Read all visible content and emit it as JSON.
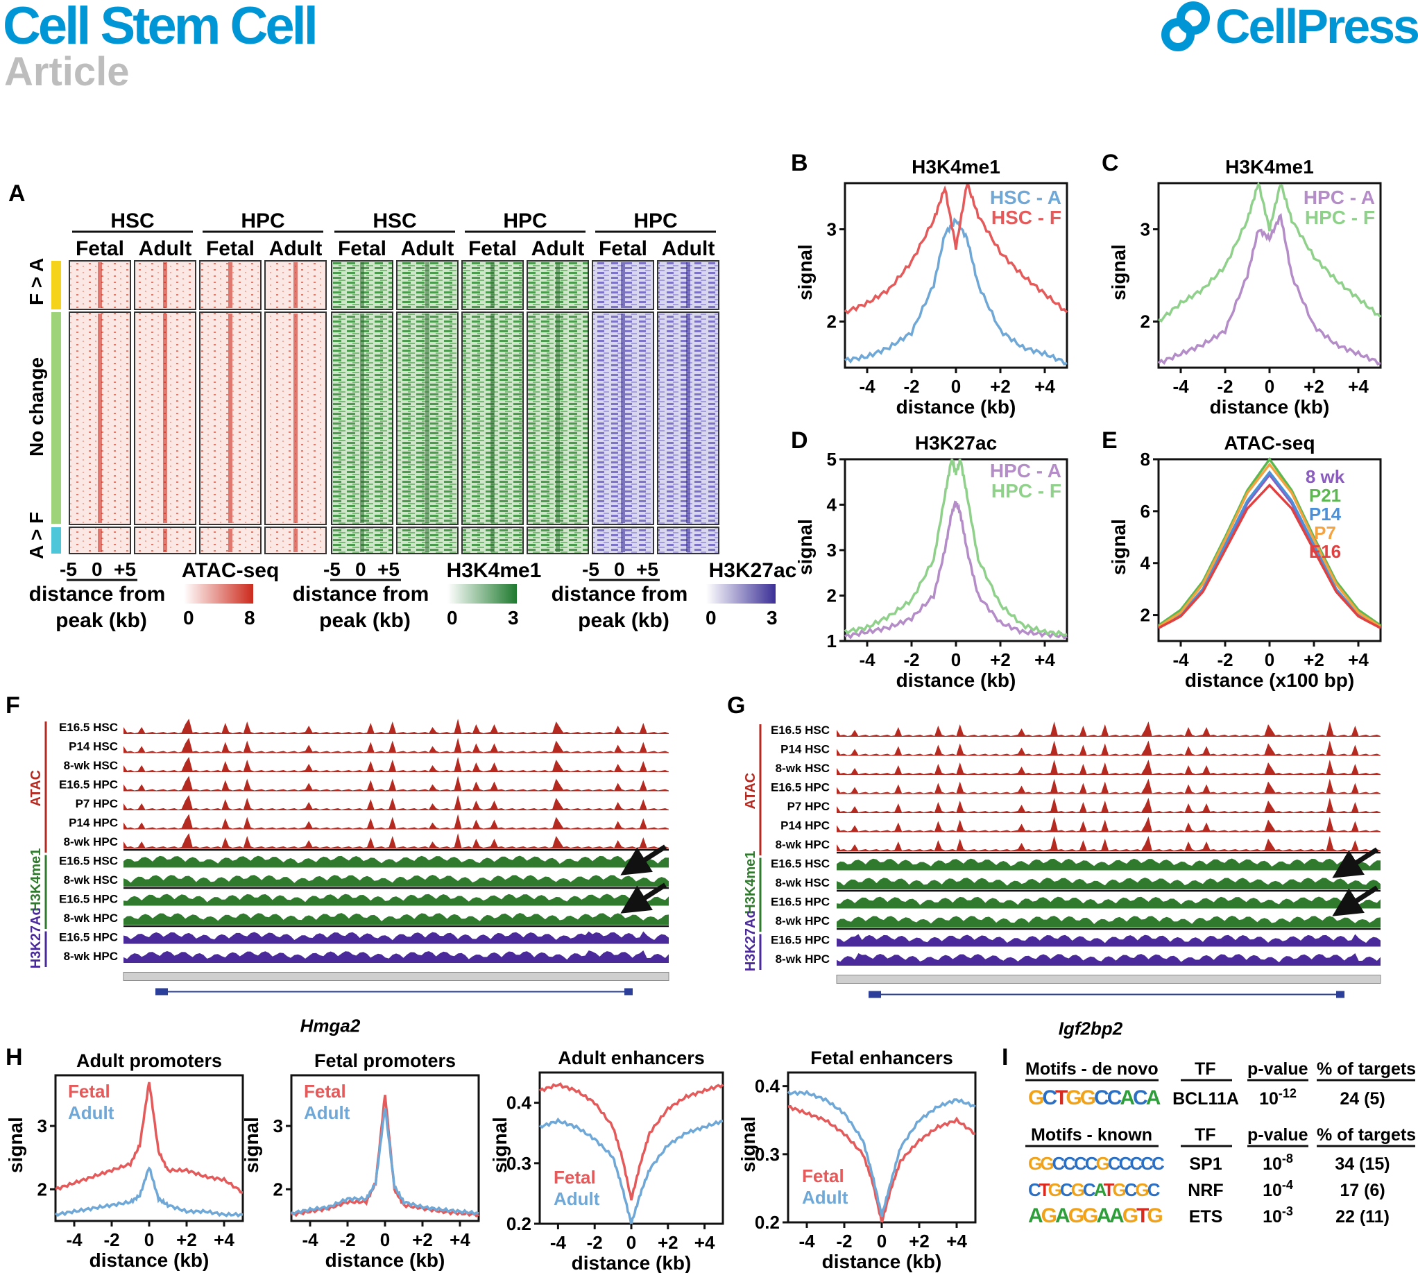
{
  "header": {
    "journal": "Cell Stem Cell",
    "section": "Article",
    "publisher": "CellPress"
  },
  "panelA": {
    "label": "A",
    "groups": [
      {
        "name": "HSC",
        "conditions": [
          "Fetal",
          "Adult"
        ]
      },
      {
        "name": "HPC",
        "conditions": [
          "Fetal",
          "Adult"
        ]
      },
      {
        "name": "HSC",
        "conditions": [
          "Fetal",
          "Adult"
        ]
      },
      {
        "name": "HPC",
        "conditions": [
          "Fetal",
          "Adult"
        ]
      },
      {
        "name": "HPC",
        "conditions": [
          "Fetal",
          "Adult"
        ]
      }
    ],
    "row_clusters": [
      {
        "label": "F > A",
        "color": "#f5d31a"
      },
      {
        "label": "No change",
        "color": "#9ed37a"
      },
      {
        "label": "A > F",
        "color": "#4cc6d8"
      }
    ],
    "scales": [
      {
        "axis_ticks": [
          "-5",
          "0",
          "+5"
        ],
        "axis_label_1": "distance from",
        "axis_label_2": "peak (kb)",
        "assay": "ATAC-seq",
        "min": "0",
        "max": "8",
        "color": "#cc2a1c"
      },
      {
        "axis_ticks": [
          "-5",
          "0",
          "+5"
        ],
        "axis_label_1": "distance from",
        "axis_label_2": "peak (kb)",
        "assay": "H3K4me1",
        "min": "0",
        "max": "3",
        "color": "#1e7a2e"
      },
      {
        "axis_ticks": [
          "-5",
          "0",
          "+5"
        ],
        "axis_label_1": "distance from",
        "axis_label_2": "peak (kb)",
        "assay": "H3K27ac",
        "min": "0",
        "max": "3",
        "color": "#3b2f96"
      }
    ]
  },
  "panelsBE": [
    {
      "label": "B",
      "title": "H3K4me1",
      "ylabel": "signal",
      "xlabel": "distance (kb)",
      "xticks": [
        "-4",
        "-2",
        "0",
        "+2",
        "+4"
      ],
      "yticks": [
        "2",
        "3"
      ],
      "legend": [
        "HSC - A",
        "HSC - F"
      ]
    },
    {
      "label": "C",
      "title": "H3K4me1",
      "ylabel": "signal",
      "xlabel": "distance (kb)",
      "xticks": [
        "-4",
        "-2",
        "0",
        "+2",
        "+4"
      ],
      "yticks": [
        "2",
        "3"
      ],
      "legend": [
        "HPC - A",
        "HPC - F"
      ]
    },
    {
      "label": "D",
      "title": "H3K27ac",
      "ylabel": "signal",
      "xlabel": "distance (kb)",
      "xticks": [
        "-4",
        "-2",
        "0",
        "+2",
        "+4"
      ],
      "yticks": [
        "1",
        "2",
        "3",
        "4",
        "5"
      ],
      "legend": [
        "HPC - A",
        "HPC - F"
      ]
    },
    {
      "label": "E",
      "title": "ATAC-seq",
      "ylabel": "signal",
      "xlabel": "distance (x100 bp)",
      "xticks": [
        "-4",
        "-2",
        "0",
        "+2",
        "+4"
      ],
      "yticks": [
        "2",
        "4",
        "6",
        "8"
      ],
      "legend": [
        "8 wk",
        "P21",
        "P14",
        "P7",
        "E16"
      ]
    }
  ],
  "tracksF": {
    "label": "F",
    "gene": "Hmga2",
    "groups": [
      "ATAC",
      "H3K4me1",
      "H3K27Ac"
    ],
    "tracks": [
      "E16.5 HSC",
      "P14 HSC",
      "8-wk HSC",
      "E16.5 HPC",
      "P7 HPC",
      "P14 HPC",
      "8-wk HPC",
      "E16.5 HSC",
      "8-wk HSC",
      "E16.5 HPC",
      "8-wk HPC",
      "E16.5 HPC",
      "8-wk HPC"
    ]
  },
  "tracksG": {
    "label": "G",
    "gene": "Igf2bp2",
    "groups": [
      "ATAC",
      "H3K4me1",
      "H3K27Ac"
    ],
    "tracks": [
      "E16.5 HSC",
      "P14 HSC",
      "8-wk HSC",
      "E16.5 HPC",
      "P7 HPC",
      "P14 HPC",
      "8-wk HPC",
      "E16.5 HSC",
      "8-wk HSC",
      "E16.5 HPC",
      "8-wk HPC",
      "E16.5 HPC",
      "8-wk HPC"
    ]
  },
  "panelH": {
    "label": "H",
    "plots": [
      {
        "title": "Adult promoters",
        "ylabel": "signal",
        "xlabel": "distance (kb)",
        "xticks": [
          "-4",
          "-2",
          "0",
          "+2",
          "+4"
        ],
        "yticks": [
          "2",
          "3"
        ],
        "legend": [
          "Fetal",
          "Adult"
        ]
      },
      {
        "title": "Fetal promoters",
        "ylabel": "signal",
        "xlabel": "distance (kb)",
        "xticks": [
          "-4",
          "-2",
          "0",
          "+2",
          "+4"
        ],
        "yticks": [
          "2",
          "3"
        ],
        "legend": [
          "Fetal",
          "Adult"
        ]
      },
      {
        "title": "Adult enhancers",
        "ylabel": "signal",
        "xlabel": "distance (kb)",
        "xticks": [
          "-4",
          "-2",
          "0",
          "+2",
          "+4"
        ],
        "yticks": [
          "0.2",
          "0.3",
          "0.4"
        ],
        "legend": [
          "Fetal",
          "Adult"
        ]
      },
      {
        "title": "Fetal enhancers",
        "ylabel": "signal",
        "xlabel": "distance (kb)",
        "xticks": [
          "-4",
          "-2",
          "0",
          "+2",
          "+4"
        ],
        "yticks": [
          "0.2",
          "0.3",
          "0.4"
        ],
        "legend": [
          "Fetal",
          "Adult"
        ]
      }
    ]
  },
  "panelI": {
    "label": "I",
    "denovo_header": [
      "Motifs - de novo",
      "TF",
      "p-value",
      "% of targets"
    ],
    "denovo_rows": [
      {
        "motif": "GCTGGCCACA",
        "tf": "BCL11A",
        "p_base": "10",
        "p_exp": "-12",
        "targets": "24 (5)"
      }
    ],
    "known_header": [
      "Motifs - known",
      "TF",
      "p-value",
      "% of targets"
    ],
    "known_rows": [
      {
        "motif": "GGCCCCGCCCCC",
        "tf": "SP1",
        "p_base": "10",
        "p_exp": "-8",
        "targets": "34 (15)"
      },
      {
        "motif": "CTGCGCATGCGC",
        "tf": "NRF",
        "p_base": "10",
        "p_exp": "-4",
        "targets": "17 (6)"
      },
      {
        "motif": "AGAGGAAGTG",
        "tf": "ETS",
        "p_base": "10",
        "p_exp": "-3",
        "targets": "22 (11)"
      }
    ]
  },
  "chart_data": [
    {
      "panel": "B",
      "type": "line",
      "title": "H3K4me1",
      "xlabel": "distance (kb)",
      "ylabel": "signal",
      "xlim": [
        -5,
        5
      ],
      "ylim": [
        1.5,
        3.5
      ],
      "x": [
        -5,
        -4,
        -3,
        -2,
        -1,
        -0.5,
        0,
        0.5,
        1,
        2,
        3,
        4,
        5
      ],
      "series": [
        {
          "name": "HSC - A",
          "color": "#6fa8d6",
          "values": [
            1.58,
            1.62,
            1.72,
            1.88,
            2.4,
            2.95,
            3.1,
            2.9,
            2.4,
            1.9,
            1.72,
            1.65,
            1.55
          ]
        },
        {
          "name": "HSC - F",
          "color": "#e45a5a",
          "values": [
            2.1,
            2.2,
            2.35,
            2.65,
            3.1,
            3.45,
            2.8,
            3.5,
            3.15,
            2.75,
            2.5,
            2.3,
            2.1
          ]
        }
      ]
    },
    {
      "panel": "C",
      "type": "line",
      "title": "H3K4me1",
      "xlabel": "distance (kb)",
      "ylabel": "signal",
      "xlim": [
        -5,
        5
      ],
      "ylim": [
        1.5,
        3.5
      ],
      "x": [
        -5,
        -4,
        -3,
        -2,
        -1,
        -0.5,
        0,
        0.5,
        1,
        2,
        3,
        4,
        5
      ],
      "series": [
        {
          "name": "HPC - A",
          "color": "#b48cc8",
          "values": [
            1.55,
            1.65,
            1.75,
            1.9,
            2.5,
            3.0,
            2.9,
            3.15,
            2.5,
            1.95,
            1.75,
            1.65,
            1.55
          ]
        },
        {
          "name": "HPC - F",
          "color": "#8fd18a",
          "values": [
            2.0,
            2.2,
            2.35,
            2.6,
            3.1,
            3.5,
            3.0,
            3.5,
            3.1,
            2.7,
            2.45,
            2.25,
            2.05
          ]
        }
      ]
    },
    {
      "panel": "D",
      "type": "line",
      "title": "H3K27ac",
      "xlabel": "distance (kb)",
      "ylabel": "signal",
      "xlim": [
        -5,
        5
      ],
      "ylim": [
        1,
        5
      ],
      "x": [
        -5,
        -4,
        -3,
        -2,
        -1,
        -0.5,
        -0.2,
        0,
        0.2,
        0.5,
        1,
        2,
        3,
        4,
        5
      ],
      "series": [
        {
          "name": "HPC - A",
          "color": "#b48cc8",
          "values": [
            1.1,
            1.2,
            1.3,
            1.5,
            2.0,
            3.0,
            3.8,
            4.05,
            3.8,
            3.0,
            2.0,
            1.4,
            1.2,
            1.15,
            1.1
          ]
        },
        {
          "name": "HPC - F",
          "color": "#8fd18a",
          "values": [
            1.2,
            1.3,
            1.55,
            1.9,
            2.8,
            4.2,
            5.0,
            4.7,
            5.0,
            4.2,
            2.8,
            1.8,
            1.35,
            1.2,
            1.15
          ]
        }
      ]
    },
    {
      "panel": "E",
      "type": "line",
      "title": "ATAC-seq",
      "xlabel": "distance (x100 bp)",
      "ylabel": "signal",
      "xlim": [
        -5,
        5
      ],
      "ylim": [
        1,
        8
      ],
      "x": [
        -5,
        -4,
        -3,
        -2,
        -1,
        0,
        1,
        2,
        3,
        4,
        5
      ],
      "series": [
        {
          "name": "8 wk",
          "color": "#8a5cbf",
          "values": [
            1.5,
            2.0,
            3.0,
            4.6,
            6.3,
            7.4,
            6.3,
            4.6,
            3.0,
            2.0,
            1.5
          ]
        },
        {
          "name": "P21",
          "color": "#5bb84f",
          "values": [
            1.6,
            2.2,
            3.3,
            5.0,
            6.8,
            8.0,
            6.8,
            5.0,
            3.3,
            2.2,
            1.6
          ]
        },
        {
          "name": "P14",
          "color": "#4a90d9",
          "values": [
            1.5,
            2.0,
            3.0,
            4.7,
            6.4,
            7.5,
            6.4,
            4.7,
            3.0,
            2.0,
            1.5
          ]
        },
        {
          "name": "P7",
          "color": "#f4a340",
          "values": [
            1.55,
            2.1,
            3.2,
            4.9,
            6.7,
            7.8,
            6.7,
            4.9,
            3.2,
            2.1,
            1.55
          ]
        },
        {
          "name": "E16",
          "color": "#e04040",
          "values": [
            1.5,
            1.95,
            2.9,
            4.5,
            6.1,
            7.0,
            6.1,
            4.5,
            2.9,
            1.95,
            1.5
          ]
        }
      ]
    },
    {
      "panel": "H1",
      "type": "line",
      "title": "Adult promoters",
      "xlabel": "distance (kb)",
      "ylabel": "signal",
      "xlim": [
        -5,
        5
      ],
      "ylim": [
        1.5,
        3.8
      ],
      "x": [
        -5,
        -4,
        -3,
        -2,
        -1,
        -0.5,
        0,
        0.5,
        1,
        2,
        3,
        4,
        5
      ],
      "series": [
        {
          "name": "Fetal",
          "color": "#e45a5a",
          "values": [
            2.0,
            2.1,
            2.2,
            2.3,
            2.4,
            2.7,
            3.7,
            2.6,
            2.3,
            2.3,
            2.2,
            2.15,
            1.95
          ]
        },
        {
          "name": "Adult",
          "color": "#6fa8d6",
          "values": [
            1.6,
            1.65,
            1.7,
            1.75,
            1.8,
            1.9,
            2.35,
            1.85,
            1.75,
            1.65,
            1.65,
            1.6,
            1.6
          ]
        }
      ]
    },
    {
      "panel": "H2",
      "type": "line",
      "title": "Fetal promoters",
      "xlabel": "distance (kb)",
      "ylabel": "signal",
      "xlim": [
        -5,
        5
      ],
      "ylim": [
        1.5,
        3.8
      ],
      "x": [
        -5,
        -4,
        -3,
        -2,
        -1,
        -0.5,
        0,
        0.5,
        1,
        2,
        3,
        4,
        5
      ],
      "series": [
        {
          "name": "Fetal",
          "color": "#e45a5a",
          "values": [
            1.6,
            1.65,
            1.7,
            1.8,
            1.8,
            2.1,
            3.5,
            2.0,
            1.75,
            1.7,
            1.65,
            1.62,
            1.6
          ]
        },
        {
          "name": "Adult",
          "color": "#6fa8d6",
          "values": [
            1.62,
            1.68,
            1.72,
            1.85,
            1.85,
            2.1,
            3.3,
            2.05,
            1.8,
            1.72,
            1.68,
            1.65,
            1.62
          ]
        }
      ]
    },
    {
      "panel": "H3",
      "type": "line",
      "title": "Adult enhancers",
      "xlabel": "distance (kb)",
      "ylabel": "signal",
      "xlim": [
        -5,
        5
      ],
      "ylim": [
        0.2,
        0.45
      ],
      "x": [
        -5,
        -4,
        -3,
        -2,
        -1,
        -0.5,
        0,
        0.5,
        1,
        2,
        3,
        4,
        5
      ],
      "series": [
        {
          "name": "Fetal",
          "color": "#e45a5a",
          "values": [
            0.42,
            0.43,
            0.42,
            0.4,
            0.36,
            0.31,
            0.24,
            0.3,
            0.35,
            0.39,
            0.41,
            0.42,
            0.43
          ]
        },
        {
          "name": "Adult",
          "color": "#6fa8d6",
          "values": [
            0.36,
            0.37,
            0.36,
            0.34,
            0.31,
            0.26,
            0.2,
            0.25,
            0.29,
            0.33,
            0.35,
            0.36,
            0.37
          ]
        }
      ]
    },
    {
      "panel": "H4",
      "type": "line",
      "title": "Fetal enhancers",
      "xlabel": "distance (kb)",
      "ylabel": "signal",
      "xlim": [
        -5,
        5
      ],
      "ylim": [
        0.2,
        0.42
      ],
      "x": [
        -5,
        -4,
        -3,
        -2,
        -1,
        -0.5,
        0,
        0.5,
        1,
        2,
        3,
        4,
        5
      ],
      "series": [
        {
          "name": "Fetal",
          "color": "#e45a5a",
          "values": [
            0.37,
            0.36,
            0.35,
            0.33,
            0.3,
            0.26,
            0.2,
            0.25,
            0.29,
            0.32,
            0.34,
            0.35,
            0.33
          ]
        },
        {
          "name": "Adult",
          "color": "#6fa8d6",
          "values": [
            0.39,
            0.39,
            0.38,
            0.36,
            0.32,
            0.27,
            0.21,
            0.26,
            0.31,
            0.35,
            0.37,
            0.38,
            0.37
          ]
        }
      ]
    }
  ]
}
